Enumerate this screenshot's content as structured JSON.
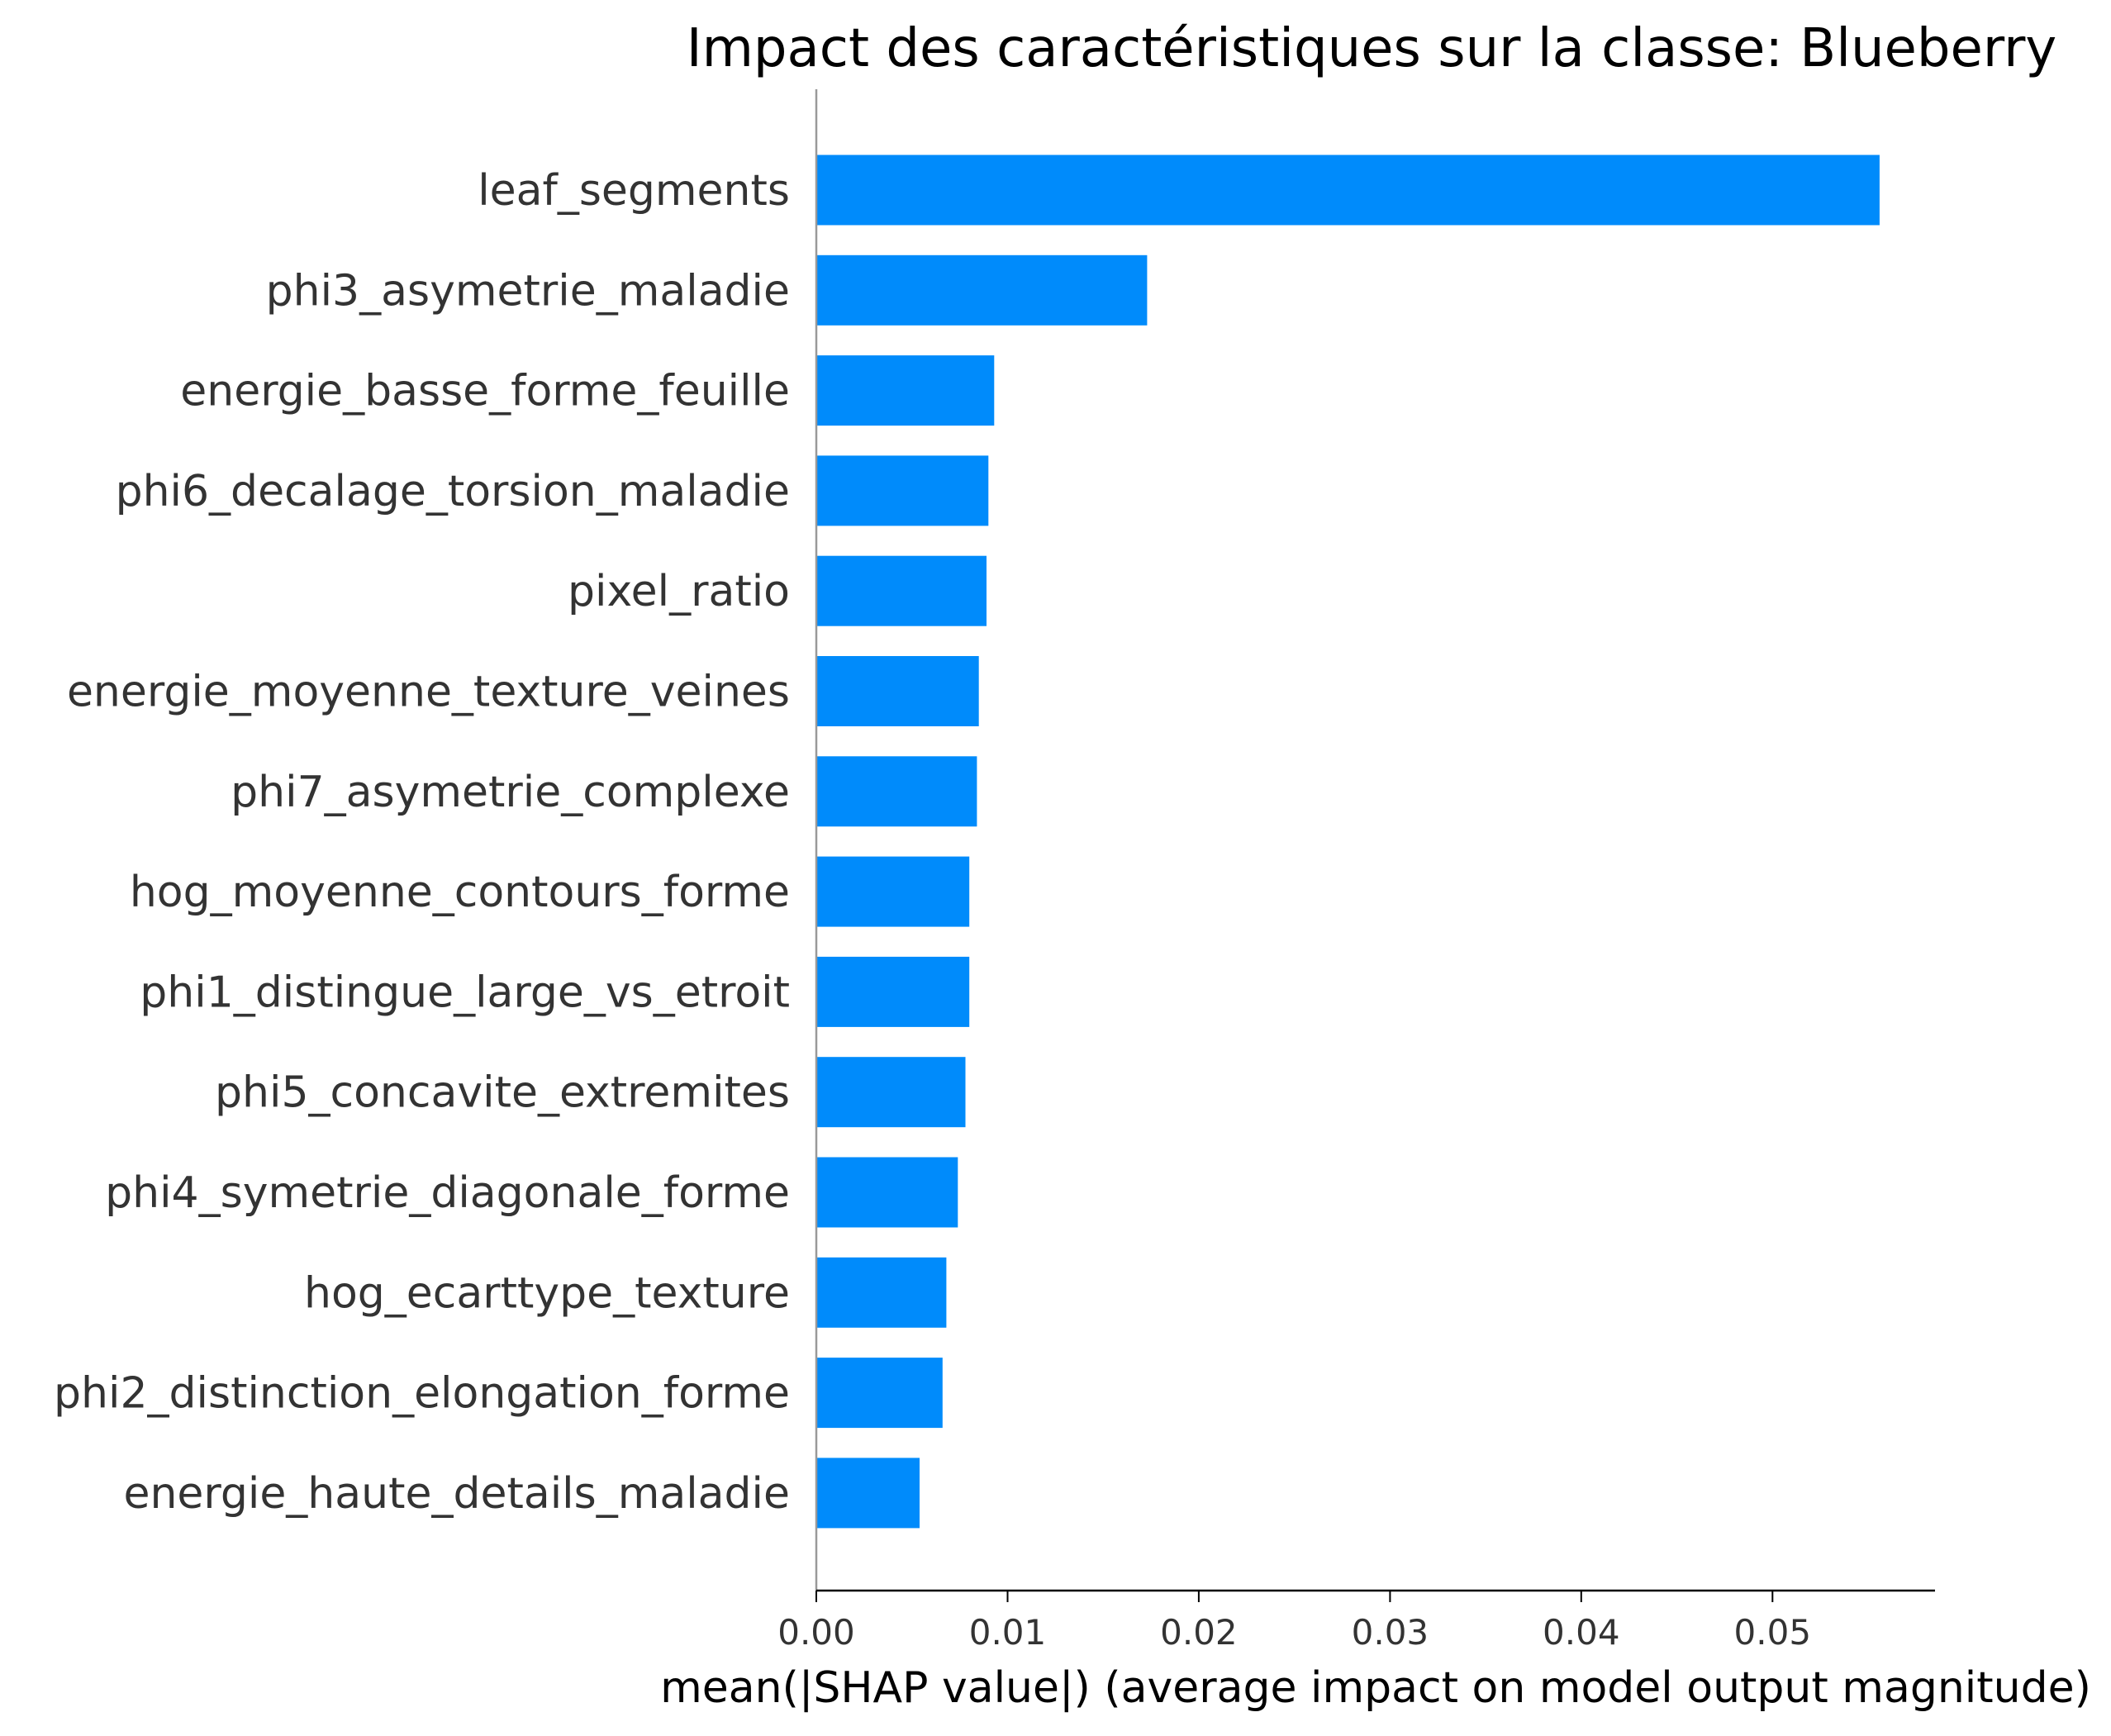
{
  "chart_data": {
    "type": "bar",
    "orientation": "horizontal",
    "title": "Impact des caractéristiques sur la classe: Blueberry",
    "xlabel": "mean(|SHAP value|) (average impact on model output magnitude)",
    "ylabel": "",
    "xlim": [
      0,
      0.0585
    ],
    "xticks": [
      0.0,
      0.01,
      0.02,
      0.03,
      0.04,
      0.05
    ],
    "xtick_labels": [
      "0.00",
      "0.01",
      "0.02",
      "0.03",
      "0.04",
      "0.05"
    ],
    "grid": false,
    "legend": "none",
    "bar_color": "#008bfb",
    "categories": [
      "leaf_segments",
      "phi3_asymetrie_maladie",
      "energie_basse_forme_feuille",
      "phi6_decalage_torsion_maladie",
      "pixel_ratio",
      "energie_moyenne_texture_veines",
      "phi7_asymetrie_complexe",
      "hog_moyenne_contours_forme",
      "phi1_distingue_large_vs_etroit",
      "phi5_concavite_extremites",
      "phi4_symetrie_diagonale_forme",
      "hog_ecarttype_texture",
      "phi2_distinction_elongation_forme",
      "energie_haute_details_maladie"
    ],
    "values": [
      0.0556,
      0.0173,
      0.0093,
      0.009,
      0.0089,
      0.0085,
      0.0084,
      0.008,
      0.008,
      0.0078,
      0.0074,
      0.0068,
      0.0066,
      0.0054
    ]
  }
}
